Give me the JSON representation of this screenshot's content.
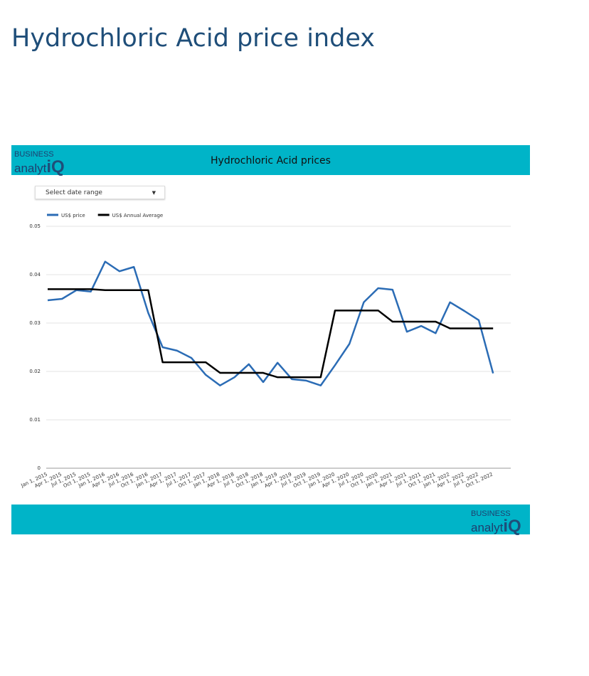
{
  "page_title": "Hydrochloric Acid price index",
  "logo": {
    "line1": "BUSINESS",
    "line2": "analyt",
    "mark": "iQ"
  },
  "dropdown": "Select date range",
  "chart_data": {
    "type": "line",
    "title": "Hydrochloric Acid prices",
    "x": [
      "Jan 1, 2015",
      "Apr 1, 2015",
      "Jul 1, 2015",
      "Oct 1, 2015",
      "Jan 1, 2016",
      "Apr 1, 2016",
      "Jul 1, 2016",
      "Oct 1, 2016",
      "Jan 1, 2017",
      "Apr 1, 2017",
      "Jul 1, 2017",
      "Oct 1, 2017",
      "Jan 1, 2018",
      "Apr 1, 2018",
      "Jul 1, 2018",
      "Oct 1, 2018",
      "Jan 1, 2019",
      "Apr 1, 2019",
      "Jul 1, 2019",
      "Oct 1, 2019",
      "Jan 1, 2020",
      "Apr 1, 2020",
      "Jul 1, 2020",
      "Oct 1, 2020",
      "Jan 1, 2021",
      "Apr 1, 2021",
      "Jul 1, 2021",
      "Oct 1, 2021",
      "Jan 1, 2022",
      "Apr 1, 2022",
      "Jul 1, 2022",
      "Oct 1, 2022"
    ],
    "series": [
      {
        "name": "US$ price",
        "color": "#2b6cb5",
        "values": [
          0.0347,
          0.035,
          0.0368,
          0.0365,
          0.0427,
          0.0407,
          0.0416,
          0.0321,
          0.025,
          0.0243,
          0.0228,
          0.0193,
          0.0171,
          0.0188,
          0.0215,
          0.0178,
          0.0218,
          0.0184,
          0.0181,
          0.0171,
          0.0213,
          0.0257,
          0.0343,
          0.0372,
          0.0369,
          0.0282,
          0.0294,
          0.0279,
          0.0343,
          0.0325,
          0.0306,
          0.0196
        ]
      },
      {
        "name": "US$ Annual Average",
        "color": "#000000",
        "values": [
          0.037,
          0.037,
          0.037,
          0.037,
          0.0368,
          0.0368,
          0.0368,
          0.0368,
          0.0219,
          0.0219,
          0.0219,
          0.0219,
          0.0197,
          0.0197,
          0.0197,
          0.0197,
          0.0188,
          0.0188,
          0.0188,
          0.0188,
          0.0326,
          0.0326,
          0.0326,
          0.0326,
          0.0303,
          0.0303,
          0.0303,
          0.0303,
          0.0289,
          0.0289,
          0.0289,
          0.0289
        ]
      }
    ],
    "ylim": [
      0,
      0.05
    ],
    "yticks": [
      0,
      0.01,
      0.02,
      0.03,
      0.04,
      0.05
    ],
    "grid": true,
    "legend": "top-left"
  }
}
